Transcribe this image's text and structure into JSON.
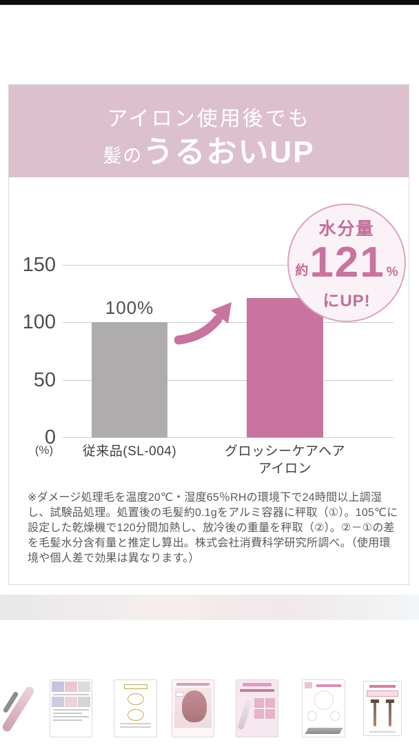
{
  "card": {
    "header": {
      "line1": "アイロン使用後でも",
      "line2_prefix": "髪の",
      "line2_main": "うるおいUP",
      "bg_color": "#dcc0cd"
    },
    "badge": {
      "label": "水分量",
      "approx": "約",
      "value": "121",
      "unit": "%",
      "suffix": "にUP!"
    },
    "footnote": "※ダメージ処理毛を温度20℃・湿度65％RHの環境下で24時間以上調湿し、試験品処理。処置後の毛髪約0.1gをアルミ容器に秤取（①）。105℃に設定した乾燥機で120分間加熱し、放冷後の重量を秤取（②）。②－①の差を毛髪水分含有量と推定し算出。株式会社消費科学研究所調べ。（使用環境や個人差で効果は異なります。）"
  },
  "chart_data": {
    "type": "bar",
    "title": "アイロン使用後でも髪のうるおいUP",
    "categories": [
      "従来品(SL-004)",
      "グロッシーケアヘア アイロン"
    ],
    "values": [
      100,
      121
    ],
    "value_labels": [
      "100%",
      ""
    ],
    "bar_colors": [
      "#afacad",
      "#c9739f"
    ],
    "yticks": [
      "150",
      "100",
      "50",
      "0"
    ],
    "ytick_values": [
      150,
      100,
      50,
      0
    ],
    "y_unit": "(%)",
    "ylim": [
      0,
      150
    ],
    "grid": true,
    "legend": "none",
    "annotation": "水分量 約121% にUP!",
    "category_labels": {
      "c1": "従来品(SL-004)",
      "c2a": "グロッシーケアヘア",
      "c2b": "アイロン"
    },
    "accent_color": "#c9739f",
    "neutral_color": "#afacad"
  },
  "thumbnails": [
    {
      "name": "pink-hair-iron"
    },
    {
      "name": "comparison-table"
    },
    {
      "name": "no1-award-emblems"
    },
    {
      "name": "pink-bob-hair-result"
    },
    {
      "name": "pearl-plate-usage-grid"
    },
    {
      "name": "pearl-plate-detail"
    },
    {
      "name": "hair-strands-comparison"
    }
  ]
}
